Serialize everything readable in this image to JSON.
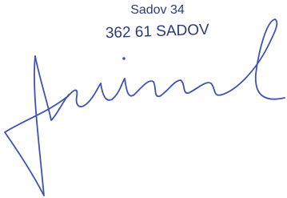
{
  "address": {
    "street": "Sadov 34",
    "city": "362 61 SADOV"
  }
}
